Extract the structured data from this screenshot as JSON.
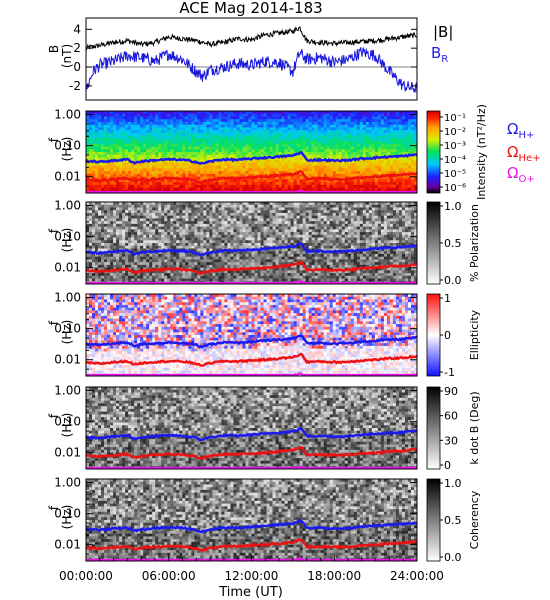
{
  "title": "ACE Mag 2014-183",
  "xlabel": "Time (UT)",
  "x_ticks": [
    "00:00:00",
    "06:00:00",
    "12:00:00",
    "18:00:00",
    "24:00:00"
  ],
  "legend": {
    "top": [
      {
        "label": "|B|",
        "color": "#000000"
      },
      {
        "label": "B",
        "sub": "R",
        "color": "#2222dd"
      }
    ],
    "gyro": [
      {
        "label": "Ω",
        "sub": "H+",
        "color": "#2222dd"
      },
      {
        "label": "Ω",
        "sub": "He+",
        "color": "#ee1111"
      },
      {
        "label": "Ω",
        "sub": "O+",
        "color": "#ee11ee"
      }
    ]
  },
  "colors": {
    "B_total": "#000000",
    "B_R": "#1a1adc",
    "H_gyro": "#1a1aee",
    "He_gyro": "#ee1111",
    "O_gyro": "#ee11ee"
  },
  "chart_data": [
    {
      "type": "line",
      "panel": "magnetic-field",
      "ylabel": "B",
      "yunit": "(nT)",
      "ylim": [
        -3.5,
        5.2
      ],
      "yticks": [
        "4",
        "2",
        "0",
        "-2"
      ],
      "xlim_hours": [
        0,
        24
      ],
      "series": [
        {
          "name": "|B|",
          "x": [
            0,
            1,
            2,
            3,
            4,
            5,
            6,
            7,
            8,
            9,
            10,
            11,
            12,
            13,
            14,
            15,
            15.5,
            16,
            17,
            18,
            19,
            20,
            21,
            22,
            23,
            24
          ],
          "values": [
            2.0,
            2.3,
            2.6,
            2.8,
            2.4,
            2.6,
            3.2,
            3.0,
            2.8,
            2.4,
            2.6,
            3.0,
            2.9,
            3.4,
            3.6,
            3.8,
            4.2,
            2.8,
            2.6,
            2.5,
            2.6,
            2.7,
            2.8,
            3.0,
            3.2,
            3.4
          ]
        },
        {
          "name": "B_R",
          "x": [
            0,
            0.5,
            1,
            2,
            3,
            4,
            5,
            6,
            7,
            8,
            8.5,
            9,
            10,
            11,
            12,
            13,
            14,
            15,
            15.5,
            16,
            17,
            18,
            19,
            20,
            21,
            22,
            23,
            24
          ],
          "values": [
            -2.5,
            -0.5,
            0.2,
            0.6,
            1.2,
            1.0,
            0.6,
            1.4,
            0.8,
            -0.5,
            -1.0,
            -0.3,
            0.0,
            0.4,
            0.2,
            0.6,
            0.5,
            -0.5,
            1.5,
            0.8,
            1.0,
            0.5,
            0.8,
            1.6,
            1.2,
            -0.5,
            -2.0,
            -2.3
          ]
        }
      ]
    },
    {
      "type": "heatmap",
      "panel": "intensity",
      "ylabel": "f",
      "yunit": "(Hz)",
      "ylim": [
        0.003,
        1.3
      ],
      "yticks": [
        "1.00",
        "0.10",
        "0.01"
      ],
      "colorbar_label": "Intensity (nT²/Hz)",
      "colorbar_ticks": [
        "10⁻¹",
        "10⁻²",
        "10⁻³",
        "10⁻⁴",
        "10⁻⁵",
        "10⁻⁶"
      ]
    },
    {
      "type": "heatmap",
      "panel": "polarization",
      "ylabel": "f",
      "yunit": "(Hz)",
      "yticks": [
        "1.00",
        "0.10",
        "0.01"
      ],
      "colorbar_label": "% Polarization",
      "colorbar_ticks": [
        "1.0",
        "0.5",
        "0.0"
      ]
    },
    {
      "type": "heatmap",
      "panel": "ellipticity",
      "ylabel": "f",
      "yunit": "(Hz)",
      "yticks": [
        "1.00",
        "0.10",
        "0.01"
      ],
      "colorbar_label": "Ellipticity",
      "colorbar_ticks": [
        "1",
        "0",
        "-1"
      ]
    },
    {
      "type": "heatmap",
      "panel": "k-dot-b",
      "ylabel": "f",
      "yunit": "(Hz)",
      "yticks": [
        "1.00",
        "0.10",
        "0.01"
      ],
      "colorbar_label": "k dot B (Deg)",
      "colorbar_ticks": [
        "90",
        "60",
        "30",
        "0"
      ]
    },
    {
      "type": "heatmap",
      "panel": "coherency",
      "ylabel": "f",
      "yunit": "(Hz)",
      "yticks": [
        "1.00",
        "0.10",
        "0.01"
      ],
      "colorbar_label": "Coherency",
      "colorbar_ticks": [
        "1.0",
        "0.5",
        "0.0"
      ]
    }
  ],
  "gyro_lines": {
    "x_hours": [
      0,
      1,
      2,
      3,
      3.5,
      4,
      5,
      6,
      7,
      8,
      8.3,
      8.6,
      9,
      10,
      11,
      12,
      13,
      14,
      15,
      15.6,
      16,
      17,
      18,
      19,
      20,
      21,
      22,
      23,
      24
    ],
    "H_plus_hz": [
      0.032,
      0.03,
      0.033,
      0.036,
      0.028,
      0.031,
      0.034,
      0.036,
      0.035,
      0.03,
      0.026,
      0.028,
      0.031,
      0.036,
      0.035,
      0.038,
      0.041,
      0.044,
      0.048,
      0.06,
      0.034,
      0.035,
      0.033,
      0.034,
      0.038,
      0.041,
      0.044,
      0.046,
      0.052
    ],
    "He_plus_hz": [
      0.008,
      0.0075,
      0.0083,
      0.009,
      0.007,
      0.0078,
      0.0085,
      0.009,
      0.0088,
      0.0075,
      0.0065,
      0.007,
      0.0078,
      0.009,
      0.0088,
      0.0095,
      0.01,
      0.011,
      0.012,
      0.015,
      0.0085,
      0.0088,
      0.0083,
      0.0085,
      0.0095,
      0.01,
      0.011,
      0.0115,
      0.013
    ],
    "O_plus_hz": [
      0.002,
      0.0019,
      0.0021,
      0.0022,
      0.0018,
      0.002,
      0.0021,
      0.0022,
      0.0022,
      0.0019,
      0.0017,
      0.0018,
      0.002,
      0.0022,
      0.0022,
      0.0024,
      0.0025,
      0.0027,
      0.003,
      0.0037,
      0.0021,
      0.0022,
      0.0021,
      0.0021,
      0.0024,
      0.0025,
      0.0027,
      0.0029,
      0.0033
    ]
  }
}
